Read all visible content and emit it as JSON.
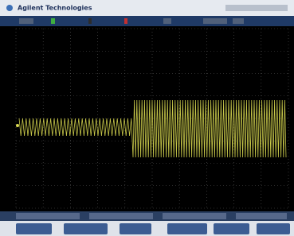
{
  "header": {
    "brand": "Agilent Technologies"
  }
}
